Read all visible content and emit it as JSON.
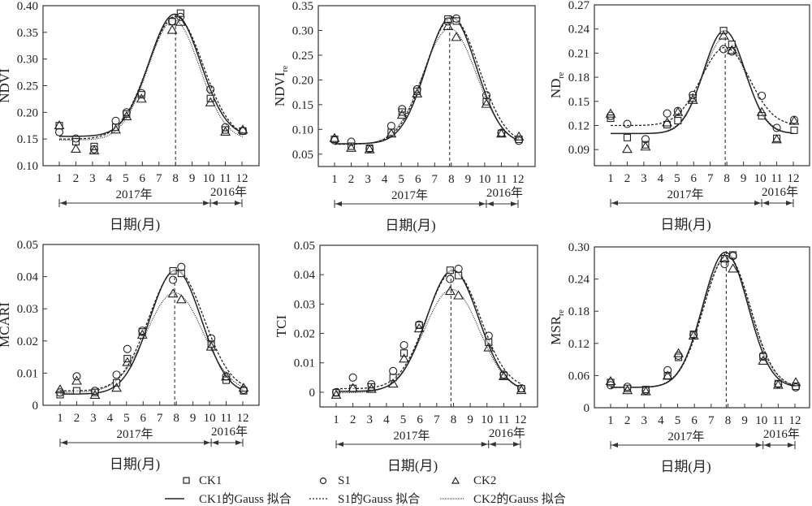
{
  "chart_data": [
    {
      "type": "scatter",
      "ylabel": "NDVI",
      "ylabel_sub": "",
      "ylim": [
        0.1,
        0.4
      ],
      "yticks": [
        "0.10",
        "0.15",
        "0.20",
        "0.25",
        "0.30",
        "0.35",
        "0.40"
      ],
      "ytick_values": [
        0.1,
        0.15,
        0.2,
        0.25,
        0.3,
        0.35,
        0.4
      ],
      "x": [
        1,
        2,
        3.1,
        4.4,
        5.05,
        5.95,
        7.8,
        8.3,
        10.1,
        11.0,
        12.05
      ],
      "series": [
        {
          "name": "CK1",
          "marker": "square",
          "values": [
            0.175,
            0.145,
            0.136,
            0.172,
            0.197,
            0.233,
            0.37,
            0.386,
            0.226,
            0.167,
            0.165
          ]
        },
        {
          "name": "S1",
          "marker": "circle",
          "values": [
            0.163,
            0.151,
            0.131,
            0.184,
            0.2,
            0.236,
            0.371,
            0.379,
            0.243,
            0.172,
            0.165
          ]
        },
        {
          "name": "CK2",
          "marker": "triangle",
          "values": [
            0.176,
            0.132,
            0.129,
            0.168,
            0.193,
            0.226,
            0.355,
            0.37,
            0.219,
            0.164,
            0.168
          ]
        }
      ],
      "fits": [
        {
          "name": "CK1的Gauss 拟合",
          "style": "solid",
          "base": 0.155,
          "amp": 0.229,
          "center": 7.95,
          "width": 1.55
        },
        {
          "name": "S1的Gauss 拟合",
          "style": "dashed",
          "base": 0.15,
          "amp": 0.23,
          "center": 8.0,
          "width": 1.65
        },
        {
          "name": "CK2的Gauss 拟合",
          "style": "dotted",
          "base": 0.148,
          "amp": 0.225,
          "center": 7.9,
          "width": 1.55
        }
      ],
      "vline_x": 8
    },
    {
      "type": "scatter",
      "ylabel": "NDVI",
      "ylabel_sub": "re",
      "ylim": [
        0.025,
        0.35
      ],
      "yticks": [
        "0.05",
        "0.10",
        "0.15",
        "0.20",
        "0.25",
        "0.30",
        "0.35"
      ],
      "ytick_values": [
        0.05,
        0.1,
        0.15,
        0.2,
        0.25,
        0.3,
        0.35
      ],
      "x": [
        1,
        2,
        3.1,
        4.4,
        5.05,
        5.95,
        7.8,
        8.3,
        10.1,
        11.0,
        12.05
      ],
      "series": [
        {
          "name": "CK1",
          "marker": "square",
          "values": [
            0.08,
            0.066,
            0.062,
            0.094,
            0.135,
            0.177,
            0.323,
            0.319,
            0.156,
            0.092,
            0.08
          ]
        },
        {
          "name": "S1",
          "marker": "circle",
          "values": [
            0.078,
            0.075,
            0.061,
            0.107,
            0.141,
            0.181,
            0.318,
            0.324,
            0.169,
            0.093,
            0.077
          ]
        },
        {
          "name": "CK2",
          "marker": "triangle",
          "values": [
            0.083,
            0.063,
            0.06,
            0.092,
            0.13,
            0.173,
            0.309,
            0.287,
            0.152,
            0.092,
            0.086
          ]
        }
      ],
      "fits": [
        {
          "name": "CK1的Gauss 拟合",
          "style": "solid",
          "base": 0.071,
          "amp": 0.256,
          "center": 8.0,
          "width": 1.5
        },
        {
          "name": "S1的Gauss 拟合",
          "style": "dashed",
          "base": 0.07,
          "amp": 0.255,
          "center": 8.05,
          "width": 1.6
        },
        {
          "name": "CK2的Gauss 拟合",
          "style": "dotted",
          "base": 0.07,
          "amp": 0.234,
          "center": 7.9,
          "width": 1.6
        }
      ],
      "vline_x": 7.9
    },
    {
      "type": "scatter",
      "ylabel": "ND",
      "ylabel_sub": "re",
      "ylim": [
        0.07,
        0.27
      ],
      "yticks": [
        "0.09",
        "0.12",
        "0.15",
        "0.18",
        "0.21",
        "0.24",
        "0.27"
      ],
      "ytick_values": [
        0.09,
        0.12,
        0.15,
        0.18,
        0.21,
        0.24,
        0.27
      ],
      "x": [
        1,
        2,
        3.1,
        4.4,
        5.05,
        5.95,
        7.8,
        8.3,
        10.1,
        11.0,
        12.05
      ],
      "series": [
        {
          "name": "CK1",
          "marker": "square",
          "values": [
            0.129,
            0.105,
            0.096,
            0.121,
            0.126,
            0.154,
            0.238,
            0.221,
            0.132,
            0.104,
            0.114
          ]
        },
        {
          "name": "S1",
          "marker": "circle",
          "values": [
            0.132,
            0.122,
            0.103,
            0.135,
            0.138,
            0.158,
            0.215,
            0.212,
            0.157,
            0.117,
            0.127
          ]
        },
        {
          "name": "CK2",
          "marker": "triangle",
          "values": [
            0.135,
            0.091,
            0.094,
            0.124,
            0.137,
            0.152,
            0.232,
            0.214,
            0.137,
            0.103,
            0.126
          ]
        }
      ],
      "fits": [
        {
          "name": "CK1的Gauss 拟合",
          "style": "solid",
          "base": 0.11,
          "amp": 0.128,
          "center": 7.85,
          "width": 1.25
        },
        {
          "name": "S1的Gauss 拟合",
          "style": "dashed",
          "base": 0.12,
          "amp": 0.097,
          "center": 7.9,
          "width": 1.45
        },
        {
          "name": "CK2的Gauss 拟合",
          "style": "dotted",
          "base": 0.11,
          "amp": 0.119,
          "center": 7.85,
          "width": 1.3
        }
      ],
      "vline_x": 7.9
    },
    {
      "type": "scatter",
      "ylabel": "MCARI",
      "ylabel_sub": "",
      "ylim": [
        0,
        0.05
      ],
      "yticks": [
        "0",
        "0.01",
        "0.02",
        "0.03",
        "0.04",
        "0.05"
      ],
      "ytick_values": [
        0,
        0.01,
        0.02,
        0.03,
        0.04,
        0.05
      ],
      "x": [
        1,
        2,
        3.1,
        4.4,
        5.05,
        5.95,
        7.8,
        8.3,
        10.1,
        11.0,
        12.05
      ],
      "series": [
        {
          "name": "CK1",
          "marker": "square",
          "values": [
            0.0033,
            0.0045,
            0.004,
            0.007,
            0.0145,
            0.0228,
            0.0418,
            0.041,
            0.019,
            0.0078,
            0.0045
          ]
        },
        {
          "name": "S1",
          "marker": "circle",
          "values": [
            0.004,
            0.009,
            0.0045,
            0.0095,
            0.0175,
            0.0232,
            0.039,
            0.043,
            0.0208,
            0.009,
            0.0048
          ]
        },
        {
          "name": "CK2",
          "marker": "triangle",
          "values": [
            0.005,
            0.0077,
            0.0033,
            0.0055,
            0.0135,
            0.022,
            0.0348,
            0.033,
            0.0183,
            0.009,
            0.0055
          ]
        }
      ],
      "fits": [
        {
          "name": "CK1的Gauss 拟合",
          "style": "solid",
          "base": 0.0035,
          "amp": 0.0385,
          "center": 7.95,
          "width": 1.55
        },
        {
          "name": "S1的Gauss 拟合",
          "style": "dashed",
          "base": 0.0045,
          "amp": 0.0375,
          "center": 8.0,
          "width": 1.65
        },
        {
          "name": "CK2的Gauss 拟合",
          "style": "dotted",
          "base": 0.004,
          "amp": 0.031,
          "center": 7.9,
          "width": 1.7
        }
      ],
      "vline_x": 7.9
    },
    {
      "type": "scatter",
      "ylabel": "TCI",
      "ylabel_sub": "",
      "ylim": [
        -0.005,
        0.05
      ],
      "yticks": [
        "0",
        "0.01",
        "0.02",
        "0.03",
        "0.04",
        "0.05"
      ],
      "ytick_values": [
        0,
        0.01,
        0.02,
        0.03,
        0.04,
        0.05
      ],
      "x": [
        1,
        2,
        3.1,
        4.4,
        5.05,
        5.95,
        7.8,
        8.3,
        10.1,
        11.0,
        12.05
      ],
      "series": [
        {
          "name": "CK1",
          "marker": "square",
          "values": [
            -0.0002,
            0.0013,
            0.0018,
            0.005,
            0.0133,
            0.0228,
            0.0415,
            0.0397,
            0.017,
            0.0057,
            0.0012
          ]
        },
        {
          "name": "S1",
          "marker": "circle",
          "values": [
            0.0,
            0.005,
            0.0027,
            0.0072,
            0.016,
            0.023,
            0.0385,
            0.042,
            0.0192,
            0.006,
            0.0013
          ]
        },
        {
          "name": "CK2",
          "marker": "triangle",
          "values": [
            -0.0008,
            0.0015,
            0.0012,
            0.003,
            0.0115,
            0.0218,
            0.0345,
            0.033,
            0.0153,
            0.0055,
            0.0008
          ]
        }
      ],
      "fits": [
        {
          "name": "CK1的Gauss 拟合",
          "style": "solid",
          "base": 0.0003,
          "amp": 0.0412,
          "center": 7.95,
          "width": 1.55
        },
        {
          "name": "S1的Gauss 拟合",
          "style": "dashed",
          "base": 0.0012,
          "amp": 0.04,
          "center": 8.0,
          "width": 1.6
        },
        {
          "name": "CK2的Gauss 拟合",
          "style": "dotted",
          "base": -0.0002,
          "amp": 0.0352,
          "center": 7.9,
          "width": 1.65
        }
      ],
      "vline_x": 7.85
    },
    {
      "type": "scatter",
      "ylabel": "MSR",
      "ylabel_sub": "re",
      "ylim": [
        0,
        0.3
      ],
      "yticks": [
        "0",
        "0.06",
        "0.12",
        "0.18",
        "0.24",
        "0.30"
      ],
      "ytick_values": [
        0,
        0.06,
        0.12,
        0.18,
        0.24,
        0.3
      ],
      "x": [
        1,
        2,
        3.1,
        4.4,
        5.05,
        5.95,
        7.8,
        8.3,
        10.1,
        11.0,
        12.05
      ],
      "series": [
        {
          "name": "CK1",
          "marker": "square",
          "values": [
            0.047,
            0.036,
            0.034,
            0.06,
            0.094,
            0.137,
            0.278,
            0.285,
            0.095,
            0.045,
            0.04
          ]
        },
        {
          "name": "S1",
          "marker": "circle",
          "values": [
            0.042,
            0.039,
            0.032,
            0.07,
            0.097,
            0.136,
            0.268,
            0.283,
            0.097,
            0.044,
            0.038
          ]
        },
        {
          "name": "CK2",
          "marker": "triangle",
          "values": [
            0.05,
            0.033,
            0.031,
            0.06,
            0.102,
            0.135,
            0.279,
            0.26,
            0.088,
            0.043,
            0.048
          ]
        }
      ],
      "fits": [
        {
          "name": "CK1的Gauss 拟合",
          "style": "solid",
          "base": 0.038,
          "amp": 0.252,
          "center": 7.85,
          "width": 1.35
        },
        {
          "name": "S1的Gauss 拟合",
          "style": "dashed",
          "base": 0.038,
          "amp": 0.245,
          "center": 7.95,
          "width": 1.4
        },
        {
          "name": "CK2的Gauss 拟合",
          "style": "dotted",
          "base": 0.038,
          "amp": 0.245,
          "center": 7.9,
          "width": 1.4
        }
      ],
      "vline_x": 7.9
    }
  ],
  "xaxis": {
    "ticks": [
      "1",
      "2",
      "3",
      "4",
      "5",
      "6",
      "7",
      "8",
      "9",
      "10",
      "11",
      "12"
    ],
    "year_2017": "2017年",
    "year_2016": "2016年",
    "title": "日期(月)"
  },
  "legend": {
    "ck1": "CK1",
    "s1": "S1",
    "ck2": "CK2",
    "ck1_fit": "CK1的Gauss 拟合",
    "s1_fit": "S1的Gauss 拟合",
    "ck2_fit": "CK2的Gauss 拟合"
  }
}
